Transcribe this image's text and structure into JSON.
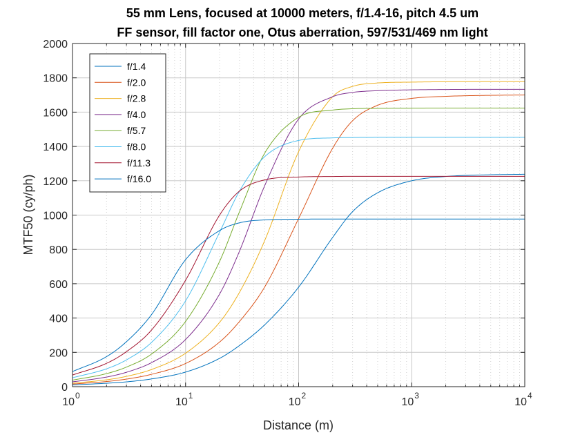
{
  "chart_data": {
    "type": "line",
    "title": "55 mm Lens, focused at 10000 meters, f/1.4-16, pitch 4.5 um",
    "subtitle": "FF sensor, fill factor one, Otus aberration, 597/531/469 nm light",
    "xlabel": "Distance (m)",
    "ylabel": "MTF50 (cy/ph)",
    "xscale": "log",
    "xlim": [
      1,
      10000
    ],
    "ylim": [
      0,
      2000
    ],
    "x_ticks": [
      {
        "base": "10",
        "exp": "0"
      },
      {
        "base": "10",
        "exp": "1"
      },
      {
        "base": "10",
        "exp": "2"
      },
      {
        "base": "10",
        "exp": "3"
      },
      {
        "base": "10",
        "exp": "4"
      }
    ],
    "y_ticks": [
      "0",
      "200",
      "400",
      "600",
      "800",
      "1000",
      "1200",
      "1400",
      "1600",
      "1800",
      "2000"
    ],
    "grid": true,
    "minor_grid": true,
    "legend_position": "top-left",
    "series": [
      {
        "name": "f/1.4",
        "color": "#0072BD",
        "x": [
          1,
          2,
          3,
          5,
          10,
          20,
          30,
          50,
          100,
          200,
          300,
          500,
          1000,
          2000,
          5000,
          10000
        ],
        "y": [
          10,
          20,
          28,
          45,
          85,
          165,
          240,
          360,
          580,
          870,
          1020,
          1130,
          1200,
          1225,
          1235,
          1238
        ]
      },
      {
        "name": "f/2.0",
        "color": "#D95319",
        "x": [
          1,
          2,
          3,
          5,
          10,
          20,
          30,
          50,
          100,
          200,
          300,
          500,
          1000,
          2000,
          5000,
          10000
        ],
        "y": [
          15,
          30,
          44,
          72,
          135,
          260,
          380,
          580,
          980,
          1390,
          1550,
          1640,
          1680,
          1692,
          1698,
          1700
        ]
      },
      {
        "name": "f/2.8",
        "color": "#EDB120",
        "x": [
          1,
          2,
          3,
          5,
          10,
          20,
          30,
          50,
          100,
          200,
          300,
          500,
          1000,
          2000,
          5000,
          10000
        ],
        "y": [
          20,
          40,
          60,
          100,
          195,
          375,
          550,
          850,
          1370,
          1690,
          1750,
          1770,
          1775,
          1777,
          1778,
          1778
        ]
      },
      {
        "name": "f/4.0",
        "color": "#7E2F8E",
        "x": [
          1,
          2,
          3,
          5,
          10,
          20,
          30,
          50,
          100,
          200,
          300,
          500,
          1000,
          2000,
          5000,
          10000
        ],
        "y": [
          28,
          56,
          84,
          140,
          275,
          540,
          790,
          1170,
          1560,
          1690,
          1715,
          1725,
          1730,
          1732,
          1733,
          1733
        ]
      },
      {
        "name": "f/5.7",
        "color": "#77AC30",
        "x": [
          1,
          2,
          3,
          5,
          10,
          20,
          30,
          50,
          100,
          200,
          300,
          500,
          1000,
          2000,
          5000,
          10000
        ],
        "y": [
          38,
          76,
          114,
          190,
          380,
          730,
          1020,
          1360,
          1570,
          1612,
          1620,
          1622,
          1623,
          1624,
          1624,
          1624
        ]
      },
      {
        "name": "f/8.0",
        "color": "#4DBEEE",
        "x": [
          1,
          2,
          3,
          5,
          10,
          20,
          30,
          50,
          100,
          200,
          300,
          500,
          1000,
          2000,
          5000,
          10000
        ],
        "y": [
          52,
          104,
          156,
          258,
          500,
          900,
          1140,
          1340,
          1435,
          1450,
          1452,
          1453,
          1453,
          1453,
          1453,
          1453
        ]
      },
      {
        "name": "f/11.3",
        "color": "#A2142F",
        "x": [
          1,
          2,
          3,
          5,
          10,
          20,
          30,
          50,
          100,
          200,
          300,
          500,
          1000,
          2000,
          5000,
          10000
        ],
        "y": [
          68,
          136,
          204,
          330,
          620,
          1000,
          1140,
          1205,
          1222,
          1225,
          1226,
          1226,
          1226,
          1226,
          1226,
          1226
        ]
      },
      {
        "name": "f/16.0",
        "color": "#0072BD",
        "x": [
          1,
          2,
          3,
          5,
          10,
          20,
          30,
          50,
          100,
          200,
          300,
          500,
          1000,
          2000,
          5000,
          10000
        ],
        "y": [
          88,
          175,
          262,
          420,
          740,
          910,
          955,
          972,
          976,
          977,
          977,
          977,
          977,
          977,
          977,
          977
        ]
      }
    ]
  }
}
